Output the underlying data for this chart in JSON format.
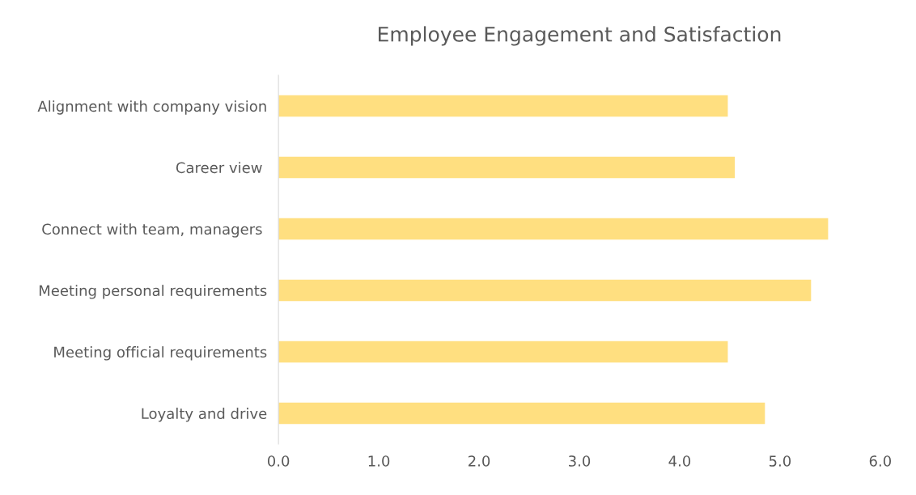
{
  "chart_data": {
    "type": "bar",
    "orientation": "horizontal",
    "title": "Employee Engagement and Satisfaction",
    "categories": [
      "Alignment with company vision",
      "Career view ",
      "Connect with team, managers ",
      "Meeting personal requirements",
      "Meeting official requirements",
      "Loyalty and drive"
    ],
    "values": [
      4.48,
      4.55,
      5.48,
      5.31,
      4.48,
      4.85
    ],
    "color": "#ffdf80",
    "xlim": [
      0,
      6
    ],
    "xticks": [
      {
        "value": 0,
        "label": "0.0"
      },
      {
        "value": 1,
        "label": "1.0"
      },
      {
        "value": 2,
        "label": "2.0"
      },
      {
        "value": 3,
        "label": "3.0"
      },
      {
        "value": 4,
        "label": "4.0"
      },
      {
        "value": 5,
        "label": "5.0"
      },
      {
        "value": 6,
        "label": "6.0"
      }
    ],
    "grid": false,
    "legend": false
  }
}
